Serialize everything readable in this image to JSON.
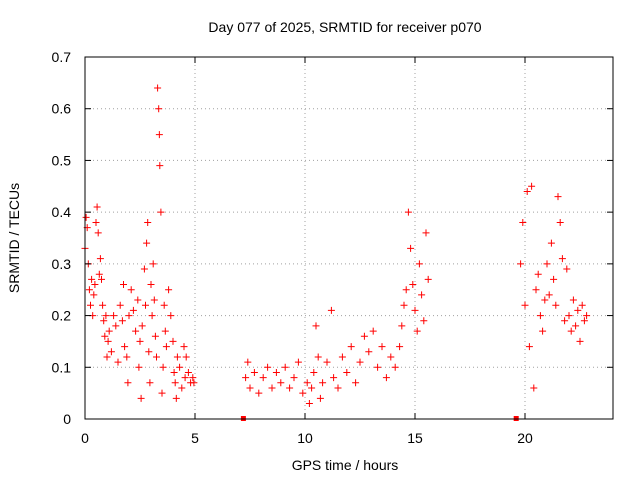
{
  "chart_data": {
    "type": "scatter",
    "title": "Day 077 of 2025, SRMTID for receiver p070",
    "xlabel": "GPS time / hours",
    "ylabel": "SRMTID / TECUs",
    "xlim": [
      0,
      24
    ],
    "ylim": [
      0,
      0.7
    ],
    "xticks": [
      0,
      5,
      10,
      15,
      20
    ],
    "yticks": [
      0,
      0.1,
      0.2,
      0.3,
      0.4,
      0.5,
      0.6,
      0.7
    ],
    "xtick_labels": [
      "0",
      "5",
      "10",
      "15",
      "20"
    ],
    "ytick_labels": [
      "0",
      "0.1",
      "0.2",
      "0.3",
      "0.4",
      "0.5",
      "0.6",
      "0.7"
    ],
    "grid": true,
    "marker": "+",
    "color": "#ff0000",
    "series": [
      {
        "name": "SRMTID",
        "points": [
          [
            0.0,
            0.33
          ],
          [
            0.05,
            0.39
          ],
          [
            0.1,
            0.37
          ],
          [
            0.15,
            0.3
          ],
          [
            0.2,
            0.25
          ],
          [
            0.25,
            0.22
          ],
          [
            0.3,
            0.27
          ],
          [
            0.35,
            0.2
          ],
          [
            0.4,
            0.24
          ],
          [
            0.45,
            0.26
          ],
          [
            0.5,
            0.38
          ],
          [
            0.55,
            0.41
          ],
          [
            0.6,
            0.36
          ],
          [
            0.65,
            0.28
          ],
          [
            0.7,
            0.31
          ],
          [
            0.75,
            0.27
          ],
          [
            0.8,
            0.22
          ],
          [
            0.85,
            0.19
          ],
          [
            0.9,
            0.16
          ],
          [
            0.95,
            0.2
          ],
          [
            1.0,
            0.12
          ],
          [
            1.05,
            0.15
          ],
          [
            1.1,
            0.17
          ],
          [
            1.2,
            0.13
          ],
          [
            1.3,
            0.2
          ],
          [
            1.4,
            0.18
          ],
          [
            1.5,
            0.11
          ],
          [
            1.6,
            0.22
          ],
          [
            1.7,
            0.19
          ],
          [
            1.75,
            0.26
          ],
          [
            1.8,
            0.14
          ],
          [
            1.9,
            0.12
          ],
          [
            1.95,
            0.07
          ],
          [
            2.0,
            0.2
          ],
          [
            2.1,
            0.25
          ],
          [
            2.2,
            0.21
          ],
          [
            2.3,
            0.17
          ],
          [
            2.4,
            0.23
          ],
          [
            2.45,
            0.1
          ],
          [
            2.5,
            0.15
          ],
          [
            2.55,
            0.04
          ],
          [
            2.6,
            0.18
          ],
          [
            2.7,
            0.29
          ],
          [
            2.75,
            0.22
          ],
          [
            2.8,
            0.34
          ],
          [
            2.85,
            0.38
          ],
          [
            2.9,
            0.13
          ],
          [
            2.95,
            0.07
          ],
          [
            3.0,
            0.26
          ],
          [
            3.05,
            0.2
          ],
          [
            3.1,
            0.3
          ],
          [
            3.15,
            0.23
          ],
          [
            3.2,
            0.16
          ],
          [
            3.25,
            0.12
          ],
          [
            3.3,
            0.64
          ],
          [
            3.35,
            0.6
          ],
          [
            3.38,
            0.55
          ],
          [
            3.4,
            0.49
          ],
          [
            3.45,
            0.4
          ],
          [
            3.5,
            0.05
          ],
          [
            3.55,
            0.1
          ],
          [
            3.6,
            0.22
          ],
          [
            3.65,
            0.17
          ],
          [
            3.7,
            0.14
          ],
          [
            3.8,
            0.25
          ],
          [
            3.9,
            0.2
          ],
          [
            4.0,
            0.15
          ],
          [
            4.05,
            0.09
          ],
          [
            4.1,
            0.07
          ],
          [
            4.15,
            0.04
          ],
          [
            4.2,
            0.12
          ],
          [
            4.3,
            0.1
          ],
          [
            4.4,
            0.06
          ],
          [
            4.5,
            0.14
          ],
          [
            4.55,
            0.08
          ],
          [
            4.6,
            0.12
          ],
          [
            4.7,
            0.09
          ],
          [
            4.8,
            0.07
          ],
          [
            4.9,
            0.08
          ],
          [
            4.95,
            0.07
          ],
          [
            7.3,
            0.08
          ],
          [
            7.4,
            0.11
          ],
          [
            7.5,
            0.06
          ],
          [
            7.7,
            0.09
          ],
          [
            7.9,
            0.05
          ],
          [
            8.1,
            0.08
          ],
          [
            8.3,
            0.1
          ],
          [
            8.5,
            0.06
          ],
          [
            8.7,
            0.09
          ],
          [
            8.9,
            0.07
          ],
          [
            9.1,
            0.1
          ],
          [
            9.3,
            0.06
          ],
          [
            9.5,
            0.08
          ],
          [
            9.7,
            0.11
          ],
          [
            9.9,
            0.05
          ],
          [
            10.1,
            0.07
          ],
          [
            10.2,
            0.03
          ],
          [
            10.3,
            0.06
          ],
          [
            10.4,
            0.09
          ],
          [
            10.5,
            0.18
          ],
          [
            10.6,
            0.12
          ],
          [
            10.7,
            0.04
          ],
          [
            10.8,
            0.07
          ],
          [
            11.0,
            0.11
          ],
          [
            11.2,
            0.21
          ],
          [
            11.3,
            0.08
          ],
          [
            11.5,
            0.06
          ],
          [
            11.7,
            0.12
          ],
          [
            11.9,
            0.09
          ],
          [
            12.1,
            0.14
          ],
          [
            12.3,
            0.07
          ],
          [
            12.5,
            0.11
          ],
          [
            12.7,
            0.16
          ],
          [
            12.9,
            0.13
          ],
          [
            13.1,
            0.17
          ],
          [
            13.3,
            0.1
          ],
          [
            13.5,
            0.14
          ],
          [
            13.7,
            0.08
          ],
          [
            13.9,
            0.12
          ],
          [
            14.1,
            0.1
          ],
          [
            14.3,
            0.14
          ],
          [
            14.4,
            0.18
          ],
          [
            14.5,
            0.22
          ],
          [
            14.6,
            0.25
          ],
          [
            14.7,
            0.4
          ],
          [
            14.8,
            0.33
          ],
          [
            14.9,
            0.26
          ],
          [
            15.0,
            0.21
          ],
          [
            15.1,
            0.17
          ],
          [
            15.2,
            0.3
          ],
          [
            15.3,
            0.24
          ],
          [
            15.4,
            0.19
          ],
          [
            15.5,
            0.36
          ],
          [
            15.6,
            0.27
          ],
          [
            19.8,
            0.3
          ],
          [
            19.9,
            0.38
          ],
          [
            20.0,
            0.22
          ],
          [
            20.1,
            0.44
          ],
          [
            20.2,
            0.14
          ],
          [
            20.3,
            0.45
          ],
          [
            20.4,
            0.06
          ],
          [
            20.5,
            0.25
          ],
          [
            20.6,
            0.28
          ],
          [
            20.7,
            0.2
          ],
          [
            20.8,
            0.17
          ],
          [
            20.9,
            0.23
          ],
          [
            21.0,
            0.3
          ],
          [
            21.1,
            0.24
          ],
          [
            21.2,
            0.34
          ],
          [
            21.3,
            0.27
          ],
          [
            21.4,
            0.22
          ],
          [
            21.5,
            0.43
          ],
          [
            21.6,
            0.38
          ],
          [
            21.7,
            0.31
          ],
          [
            21.8,
            0.19
          ],
          [
            21.9,
            0.29
          ],
          [
            22.0,
            0.2
          ],
          [
            22.1,
            0.17
          ],
          [
            22.2,
            0.23
          ],
          [
            22.3,
            0.18
          ],
          [
            22.4,
            0.21
          ],
          [
            22.5,
            0.15
          ],
          [
            22.6,
            0.22
          ],
          [
            22.7,
            0.19
          ],
          [
            22.8,
            0.2
          ]
        ]
      }
    ],
    "bad_data_markers_x": [
      7.2,
      19.6
    ]
  }
}
